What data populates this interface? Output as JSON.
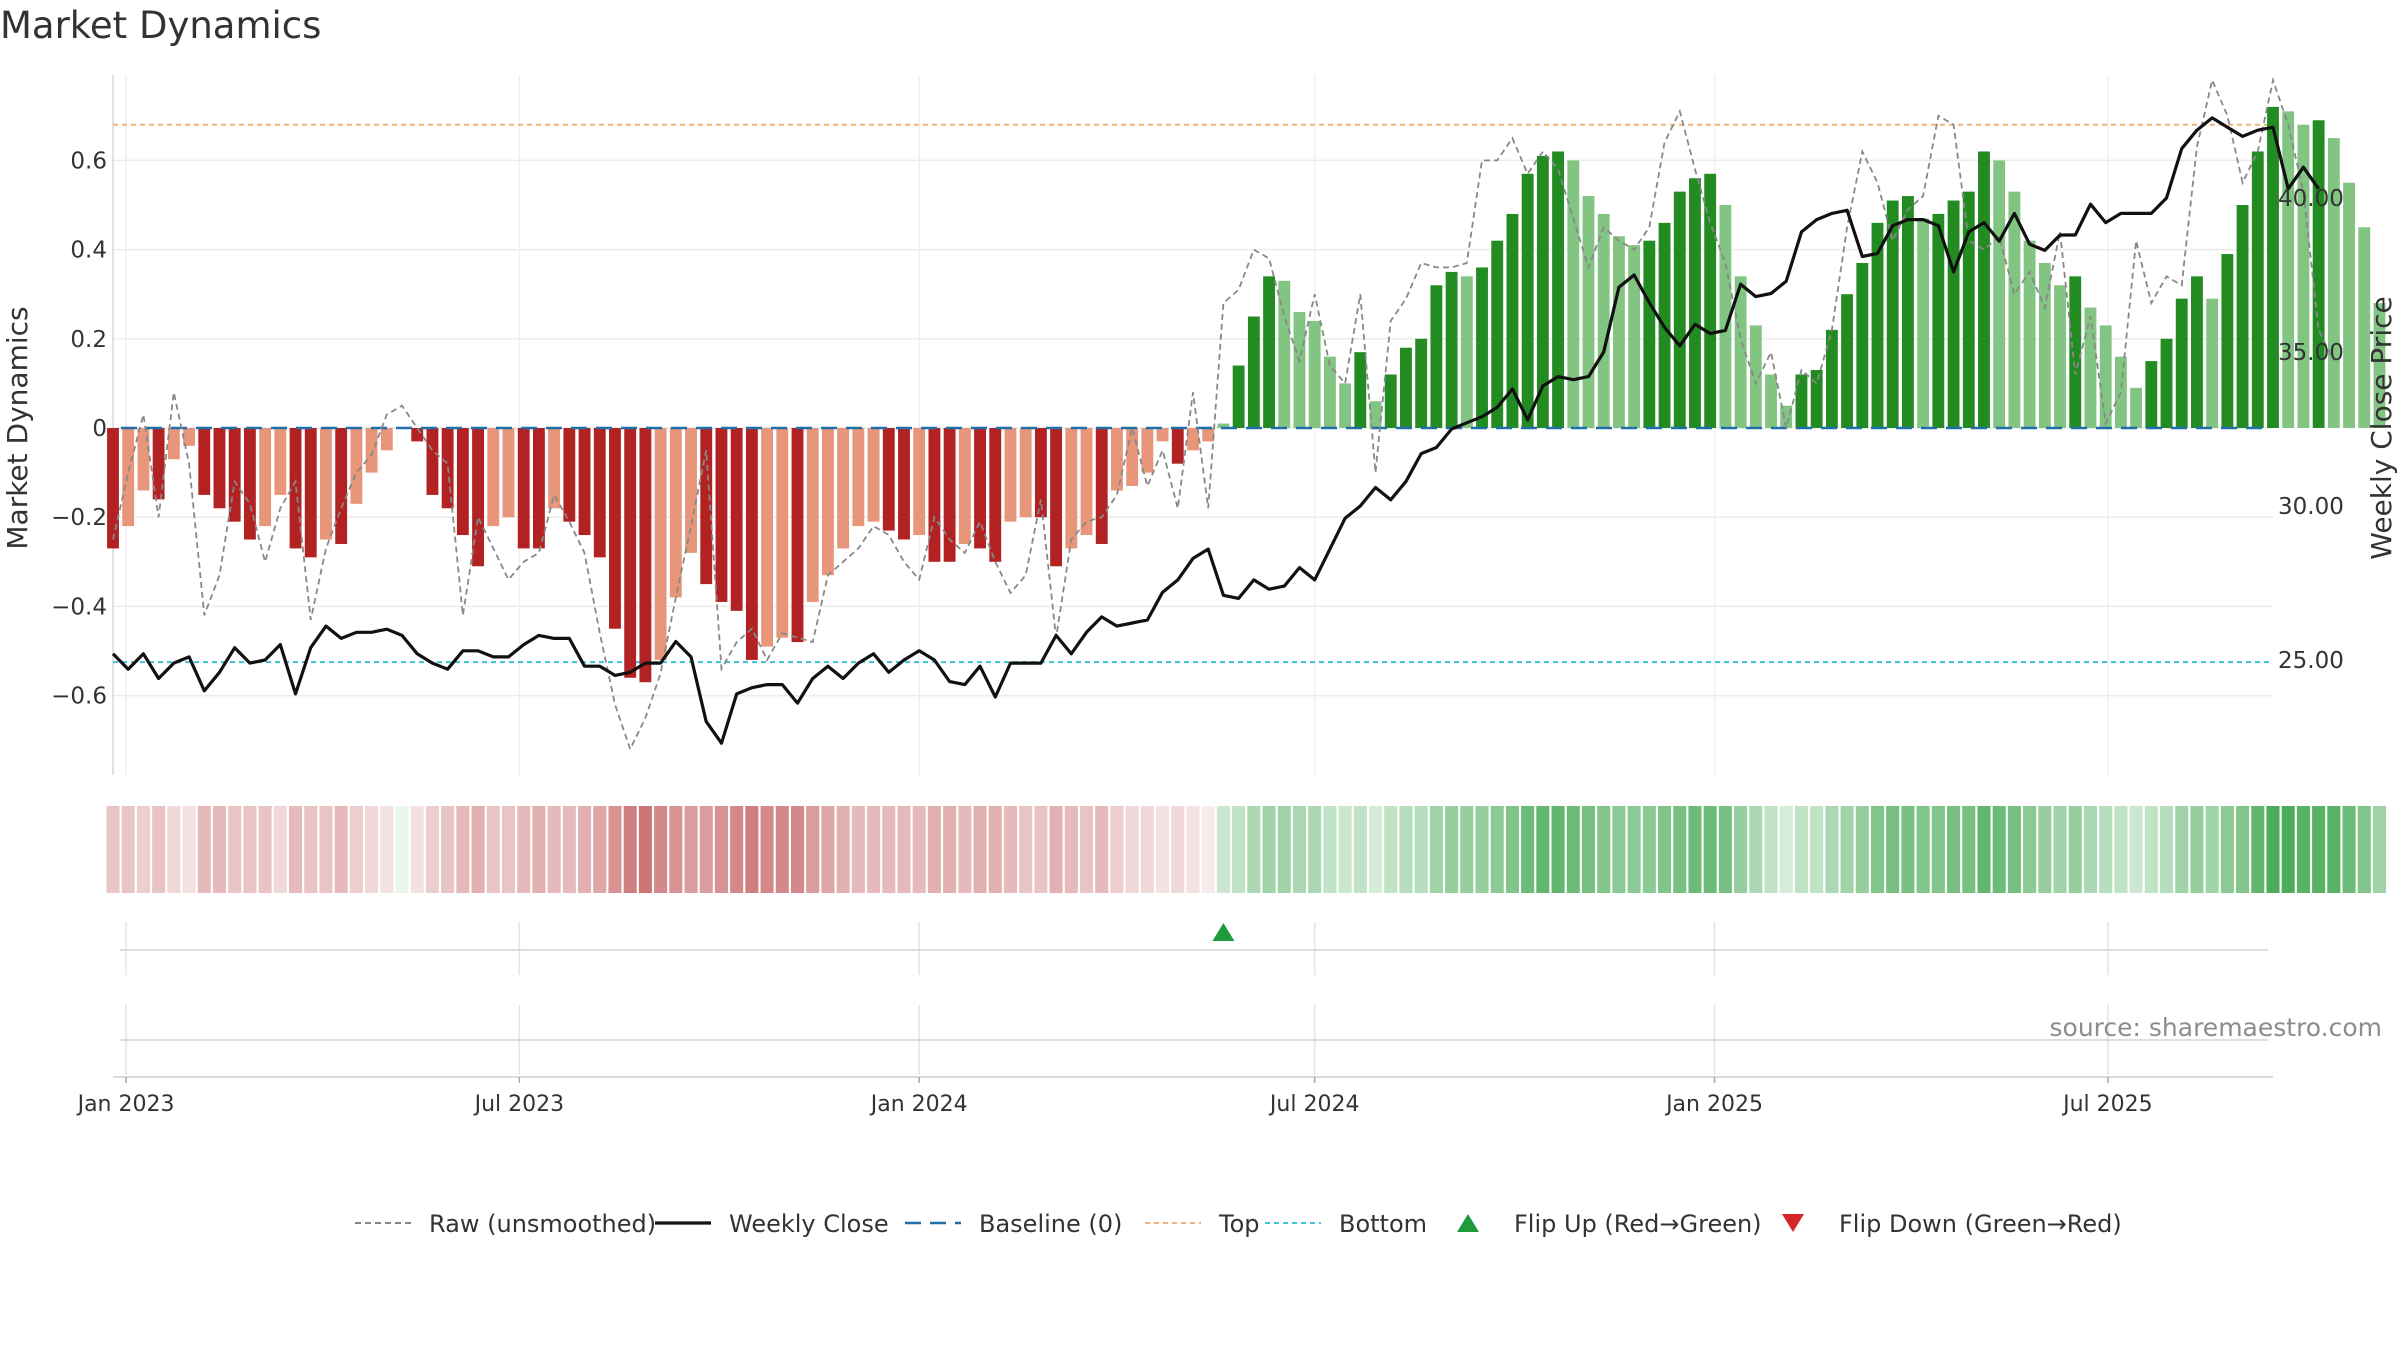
{
  "title": "Market Dynamics",
  "source": "source: sharemaestro.com",
  "chart_data": {
    "type": "bar",
    "title": "Market Dynamics",
    "ylabel": "Market Dynamics",
    "y2label": "Weekly Close Price",
    "ylim": [
      -0.78,
      0.78
    ],
    "y2lim": [
      21.0,
      43.8
    ],
    "yticks": [
      -0.6,
      -0.4,
      -0.2,
      0,
      0.2,
      0.4,
      0.6
    ],
    "ytick_labels": [
      "−0.6",
      "−0.4",
      "−0.2",
      "0",
      "0.2",
      "0.4",
      "0.6"
    ],
    "y2ticks": [
      25,
      30,
      35,
      40
    ],
    "y2tick_labels": [
      "25.00",
      "30.00",
      "35.00",
      "40.00"
    ],
    "x_start": "2022-12-26",
    "x_end": "2025-09-15",
    "week_start": "2022-12-26",
    "xticks": [
      {
        "date": "2023-01-01",
        "label": "Jan 2023"
      },
      {
        "date": "2023-07-01",
        "label": "Jul 2023"
      },
      {
        "date": "2024-01-01",
        "label": "Jan 2024"
      },
      {
        "date": "2024-07-01",
        "label": "Jul 2024"
      },
      {
        "date": "2025-01-01",
        "label": "Jan 2025"
      },
      {
        "date": "2025-07-01",
        "label": "Jul 2025"
      }
    ],
    "top_level": 0.68,
    "bottom_level": -0.525,
    "baseline": 0,
    "grid": true,
    "legend_position": "bottom-center",
    "colors": {
      "red_strong": "#b22222",
      "red_light": "#e8967a",
      "green_strong": "#228b22",
      "green_light": "#82c482",
      "close_line": "#111111",
      "raw_line": "#888888",
      "baseline": "#1f6fa8",
      "top": "#f0b27a",
      "bottom": "#3fc1d9",
      "flip_up": "#1e9c3c",
      "flip_down": "#d62728"
    },
    "series": [
      {
        "name": "Market Dynamics (bars)",
        "values": [
          -0.27,
          -0.22,
          -0.14,
          -0.16,
          -0.07,
          -0.04,
          -0.15,
          -0.18,
          -0.21,
          -0.25,
          -0.22,
          -0.15,
          -0.27,
          -0.29,
          -0.25,
          -0.26,
          -0.17,
          -0.1,
          -0.05,
          0,
          -0.03,
          -0.15,
          -0.18,
          -0.24,
          -0.31,
          -0.22,
          -0.2,
          -0.27,
          -0.27,
          -0.18,
          -0.21,
          -0.24,
          -0.29,
          -0.45,
          -0.56,
          -0.57,
          -0.52,
          -0.38,
          -0.28,
          -0.35,
          -0.39,
          -0.41,
          -0.52,
          -0.49,
          -0.47,
          -0.48,
          -0.39,
          -0.33,
          -0.27,
          -0.22,
          -0.21,
          -0.23,
          -0.25,
          -0.24,
          -0.3,
          -0.3,
          -0.26,
          -0.27,
          -0.3,
          -0.21,
          -0.2,
          -0.2,
          -0.31,
          -0.27,
          -0.24,
          -0.26,
          -0.14,
          -0.13,
          -0.1,
          -0.03,
          -0.08,
          -0.05,
          -0.03,
          0.01,
          0.14,
          0.25,
          0.34,
          0.33,
          0.26,
          0.24,
          0.16,
          0.1,
          0.17,
          0.06,
          0.12,
          0.18,
          0.2,
          0.32,
          0.35,
          0.34,
          0.36,
          0.42,
          0.48,
          0.57,
          0.61,
          0.62,
          0.6,
          0.52,
          0.48,
          0.43,
          0.41,
          0.42,
          0.46,
          0.53,
          0.56,
          0.57,
          0.5,
          0.34,
          0.23,
          0.12,
          0.05,
          0.12,
          0.13,
          0.22,
          0.3,
          0.37,
          0.46,
          0.51,
          0.52,
          0.47,
          0.48,
          0.51,
          0.53,
          0.62,
          0.6,
          0.53,
          0.42,
          0.37,
          0.32,
          0.34,
          0.27,
          0.23,
          0.16,
          0.09,
          0.15,
          0.2,
          0.29,
          0.34,
          0.29,
          0.39,
          0.5,
          0.62,
          0.72,
          0.71,
          0.68,
          0.69,
          0.65,
          0.55,
          0.45,
          0.28
        ]
      },
      {
        "name": "Raw (unsmoothed)",
        "values": [
          -0.25,
          -0.1,
          0.03,
          -0.2,
          0.08,
          -0.08,
          -0.42,
          -0.33,
          -0.12,
          -0.17,
          -0.3,
          -0.18,
          -0.12,
          -0.43,
          -0.27,
          -0.18,
          -0.1,
          -0.06,
          0.03,
          0.05,
          0.0,
          -0.05,
          -0.08,
          -0.42,
          -0.2,
          -0.27,
          -0.34,
          -0.3,
          -0.28,
          -0.15,
          -0.21,
          -0.28,
          -0.46,
          -0.62,
          -0.72,
          -0.65,
          -0.55,
          -0.38,
          -0.22,
          -0.05,
          -0.54,
          -0.48,
          -0.45,
          -0.52,
          -0.46,
          -0.47,
          -0.48,
          -0.33,
          -0.3,
          -0.27,
          -0.22,
          -0.24,
          -0.3,
          -0.34,
          -0.2,
          -0.25,
          -0.28,
          -0.21,
          -0.3,
          -0.37,
          -0.33,
          -0.16,
          -0.47,
          -0.25,
          -0.21,
          -0.2,
          -0.15,
          0.0,
          -0.13,
          -0.05,
          -0.18,
          0.08,
          -0.18,
          0.28,
          0.31,
          0.4,
          0.38,
          0.25,
          0.15,
          0.3,
          0.14,
          0.1,
          0.3,
          -0.1,
          0.24,
          0.29,
          0.37,
          0.36,
          0.36,
          0.37,
          0.6,
          0.6,
          0.65,
          0.57,
          0.62,
          0.58,
          0.47,
          0.36,
          0.45,
          0.42,
          0.4,
          0.45,
          0.64,
          0.71,
          0.58,
          0.46,
          0.37,
          0.2,
          0.1,
          0.17,
          0.0,
          0.13,
          0.1,
          0.22,
          0.45,
          0.62,
          0.55,
          0.42,
          0.49,
          0.52,
          0.7,
          0.68,
          0.42,
          0.4,
          0.43,
          0.3,
          0.35,
          0.27,
          0.44,
          0.12,
          0.25,
          0.01,
          0.08,
          0.42,
          0.28,
          0.34,
          0.32,
          0.63,
          0.78,
          0.7,
          0.55,
          0.62,
          0.78,
          0.68,
          0.53,
          0.22,
          0.15
        ]
      },
      {
        "name": "Weekly Close",
        "values": [
          25.2,
          24.7,
          25.2,
          24.4,
          24.9,
          25.1,
          24.0,
          24.6,
          25.4,
          24.9,
          25.0,
          25.5,
          23.9,
          25.4,
          26.1,
          25.7,
          25.9,
          25.9,
          26.0,
          25.8,
          25.2,
          24.9,
          24.7,
          25.3,
          25.3,
          25.1,
          25.1,
          25.5,
          25.8,
          25.7,
          25.7,
          24.8,
          24.8,
          24.5,
          24.6,
          24.9,
          24.9,
          25.6,
          25.1,
          23.0,
          22.3,
          23.9,
          24.1,
          24.2,
          24.2,
          23.6,
          24.4,
          24.8,
          24.4,
          24.9,
          25.2,
          24.6,
          25.0,
          25.3,
          25.0,
          24.3,
          24.2,
          24.8,
          23.8,
          24.9,
          24.9,
          24.9,
          25.8,
          25.2,
          25.9,
          26.4,
          26.1,
          26.2,
          26.3,
          27.2,
          27.6,
          28.3,
          28.6,
          27.1,
          27.0,
          27.6,
          27.3,
          27.4,
          28.0,
          27.6,
          28.6,
          29.6,
          30.0,
          30.6,
          30.2,
          30.8,
          31.7,
          31.9,
          32.5,
          32.7,
          32.9,
          33.2,
          33.8,
          32.8,
          33.9,
          34.2,
          34.1,
          34.2,
          35.0,
          37.1,
          37.5,
          36.6,
          35.8,
          35.2,
          35.9,
          35.6,
          35.7,
          37.2,
          36.8,
          36.9,
          37.3,
          38.9,
          39.3,
          39.5,
          39.6,
          38.1,
          38.2,
          39.1,
          39.3,
          39.3,
          39.1,
          37.6,
          38.9,
          39.2,
          38.6,
          39.5,
          38.5,
          38.3,
          38.8,
          38.8,
          39.8,
          39.2,
          39.5,
          39.5,
          39.5,
          40.0,
          41.6,
          42.2,
          42.6,
          42.3,
          42.0,
          42.2,
          42.3,
          40.3,
          41.0,
          40.3
        ]
      }
    ],
    "shade_strip": [
      0.3,
      0.3,
      0.25,
      0.3,
      0.2,
      0.15,
      0.35,
      0.35,
      0.3,
      0.3,
      0.3,
      0.2,
      0.35,
      0.3,
      0.3,
      0.35,
      0.25,
      0.2,
      0.15,
      0.1,
      0.15,
      0.25,
      0.3,
      0.35,
      0.4,
      0.3,
      0.3,
      0.35,
      0.4,
      0.35,
      0.35,
      0.4,
      0.45,
      0.55,
      0.65,
      0.7,
      0.6,
      0.55,
      0.5,
      0.5,
      0.55,
      0.6,
      0.65,
      0.6,
      0.6,
      0.6,
      0.5,
      0.45,
      0.4,
      0.35,
      0.35,
      0.35,
      0.35,
      0.35,
      0.4,
      0.4,
      0.35,
      0.4,
      0.4,
      0.35,
      0.3,
      0.3,
      0.4,
      0.35,
      0.3,
      0.35,
      0.25,
      0.2,
      0.2,
      0.15,
      0.2,
      0.15,
      0.1,
      0.25,
      0.3,
      0.4,
      0.45,
      0.45,
      0.4,
      0.4,
      0.3,
      0.25,
      0.3,
      0.2,
      0.3,
      0.35,
      0.35,
      0.45,
      0.5,
      0.5,
      0.5,
      0.55,
      0.6,
      0.7,
      0.75,
      0.75,
      0.7,
      0.65,
      0.6,
      0.55,
      0.55,
      0.55,
      0.6,
      0.65,
      0.7,
      0.7,
      0.65,
      0.5,
      0.4,
      0.3,
      0.2,
      0.3,
      0.3,
      0.4,
      0.45,
      0.5,
      0.6,
      0.65,
      0.65,
      0.6,
      0.6,
      0.65,
      0.65,
      0.75,
      0.7,
      0.65,
      0.55,
      0.5,
      0.45,
      0.5,
      0.4,
      0.35,
      0.3,
      0.25,
      0.3,
      0.35,
      0.45,
      0.5,
      0.45,
      0.55,
      0.6,
      0.75,
      0.85,
      0.85,
      0.8,
      0.8,
      0.8,
      0.7,
      0.6,
      0.45
    ],
    "flips": [
      {
        "type": "up",
        "index": 73
      }
    ],
    "legend": [
      {
        "label": "Raw (unsmoothed)",
        "style": "raw"
      },
      {
        "label": "Weekly Close",
        "style": "close"
      },
      {
        "label": "Baseline (0)",
        "style": "baseline"
      },
      {
        "label": "Top",
        "style": "top"
      },
      {
        "label": "Bottom",
        "style": "bottom"
      },
      {
        "label": "Flip Up (Red→Green)",
        "style": "flip-up"
      },
      {
        "label": "Flip Down (Green→Red)",
        "style": "flip-down"
      }
    ]
  }
}
